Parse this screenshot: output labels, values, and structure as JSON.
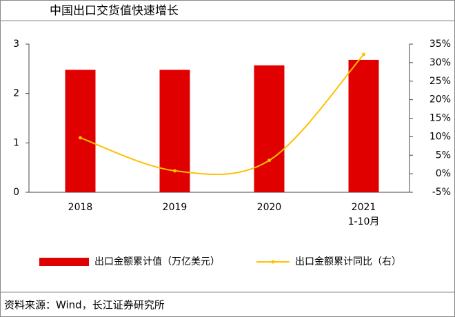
{
  "chart_data": {
    "type": "bar-line",
    "title": "中国出口交货值快速增长",
    "categories": [
      "2018",
      "2019",
      "2020",
      "2021\n1-10月"
    ],
    "series": [
      {
        "name": "出口金额累计值（万亿美元）",
        "color": "#e00000",
        "type": "bar",
        "values": [
          2.48,
          2.48,
          2.57,
          2.68
        ]
      },
      {
        "name": "出口金额累计同比（右）",
        "color": "#ffc000",
        "type": "line",
        "axis": "y2",
        "values": [
          9.7,
          0.8,
          3.6,
          32.2
        ]
      }
    ],
    "ylim": [
      0,
      3
    ],
    "yticks": [
      0,
      1,
      2,
      3
    ],
    "y2lim": [
      -5,
      35
    ],
    "y2ticks": [
      {
        "value": -5,
        "label": "-5%"
      },
      {
        "value": 0,
        "label": "0%"
      },
      {
        "value": 5,
        "label": "5%"
      },
      {
        "value": 10,
        "label": "10%"
      },
      {
        "value": 15,
        "label": "15%"
      },
      {
        "value": 20,
        "label": "20%"
      },
      {
        "value": 25,
        "label": "25%"
      },
      {
        "value": 30,
        "label": "30%"
      },
      {
        "value": 35,
        "label": "35%"
      }
    ],
    "legend": "bottom",
    "source": "资料来源：Wind，长江证券研究所"
  }
}
